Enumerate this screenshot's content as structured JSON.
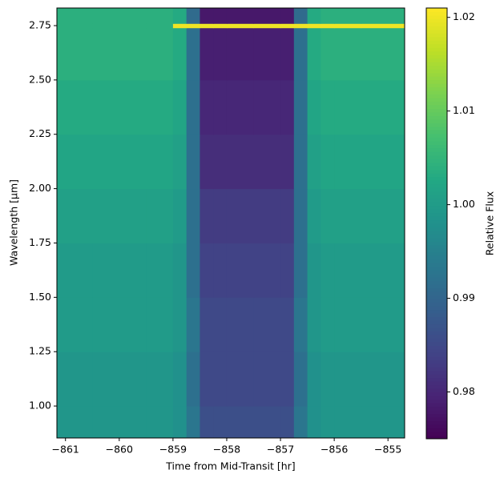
{
  "chart_data": {
    "type": "heatmap",
    "colormap": "viridis",
    "x_label": "Time from Mid-Transit [hr]",
    "y_label": "Wavelength [μm]",
    "colorbar_label": "Relative Flux",
    "xlim": [
      -861.16,
      -854.69
    ],
    "ylim": [
      0.853,
      2.831
    ],
    "clim": [
      0.975,
      1.021
    ],
    "xticks": [
      {
        "value": -861,
        "label": "−861"
      },
      {
        "value": -860,
        "label": "−860"
      },
      {
        "value": -859,
        "label": "−859"
      },
      {
        "value": -858,
        "label": "−858"
      },
      {
        "value": -857,
        "label": "−857"
      },
      {
        "value": -856,
        "label": "−856"
      },
      {
        "value": -855,
        "label": "−855"
      }
    ],
    "yticks": [
      {
        "value": 1,
        "label": "1.00"
      },
      1.25,
      {
        "value": 1.5,
        "label": "1.50"
      },
      1.75,
      {
        "value": 2,
        "label": "2.00"
      },
      2.25,
      {
        "value": 2.5,
        "label": "2.50"
      },
      2.75
    ],
    "cticks": [
      0.98,
      0.99,
      {
        "value": 1,
        "label": "1.00"
      },
      1.01,
      1.02
    ],
    "x_edges": [
      -861.16,
      -860.5,
      -860,
      -859.5,
      -859,
      -858.75,
      -858.5,
      -858.25,
      -858,
      -857.5,
      -857,
      -856.75,
      -856.5,
      -856.25,
      -856,
      -855.5,
      -854.69
    ],
    "y_edges": [
      0.853,
      1.0,
      1.25,
      1.5,
      1.75,
      2.0,
      2.25,
      2.5,
      2.74,
      2.76,
      2.831
    ],
    "z": [
      [
        0.999,
        0.999,
        0.999,
        0.999,
        0.998,
        0.993,
        0.986,
        0.986,
        0.986,
        0.986,
        0.986,
        0.993,
        0.998,
        0.999,
        0.999,
        0.999
      ],
      [
        0.999,
        0.999,
        0.999,
        0.999,
        0.998,
        0.992,
        0.985,
        0.985,
        0.985,
        0.985,
        0.985,
        0.992,
        0.998,
        0.999,
        0.999,
        0.999
      ],
      [
        1.0,
        1.0,
        1.0,
        1.0,
        0.999,
        0.993,
        0.985,
        0.985,
        0.985,
        0.985,
        0.985,
        0.993,
        0.999,
        1.0,
        1.0,
        1.0
      ],
      [
        1.0,
        1.0,
        1.0,
        1.0,
        0.999,
        0.992,
        0.984,
        0.984,
        0.984,
        0.984,
        0.984,
        0.992,
        0.999,
        1.0,
        1.0,
        1.0
      ],
      [
        1.001,
        1.001,
        1.001,
        1.001,
        1.0,
        0.992,
        0.983,
        0.983,
        0.983,
        0.983,
        0.983,
        0.992,
        1.0,
        1.001,
        1.001,
        1.001
      ],
      [
        1.002,
        1.002,
        1.002,
        1.002,
        1.001,
        0.992,
        0.981,
        0.981,
        0.981,
        0.981,
        0.981,
        0.992,
        1.001,
        1.002,
        1.002,
        1.002
      ],
      [
        1.003,
        1.003,
        1.003,
        1.003,
        1.002,
        0.992,
        0.98,
        0.98,
        0.98,
        0.98,
        0.98,
        0.992,
        1.002,
        1.003,
        1.003,
        1.003
      ],
      [
        1.004,
        1.004,
        1.004,
        1.004,
        1.003,
        0.992,
        0.979,
        0.979,
        0.979,
        0.979,
        0.979,
        0.992,
        1.003,
        1.004,
        1.004,
        1.004
      ],
      [
        1.004,
        1.004,
        1.004,
        1.004,
        1.02,
        1.02,
        1.02,
        1.02,
        1.02,
        1.02,
        1.02,
        1.02,
        1.02,
        1.02,
        1.02,
        1.02
      ],
      [
        1.004,
        1.004,
        1.004,
        1.004,
        1.003,
        0.991,
        0.978,
        0.978,
        0.978,
        0.978,
        0.978,
        0.991,
        1.003,
        1.004,
        1.004,
        1.004
      ]
    ]
  }
}
